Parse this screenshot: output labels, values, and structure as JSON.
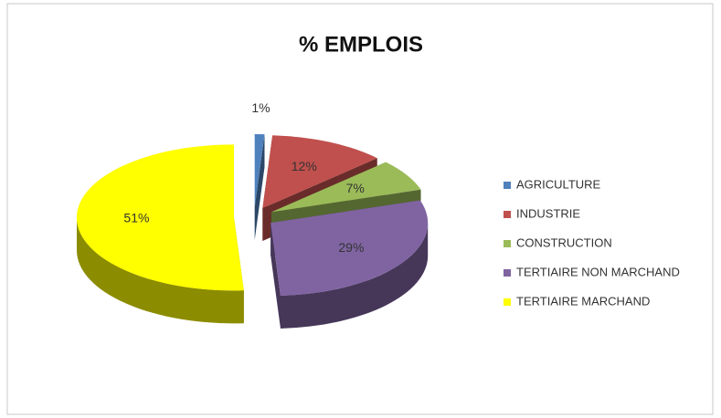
{
  "chart_data": {
    "type": "pie3d",
    "title": "% EMPLOIS",
    "categories": [
      "AGRICULTURE",
      "INDUSTRIE",
      "CONSTRUCTION",
      "TERTIAIRE NON MARCHAND",
      "TERTIAIRE MARCHAND"
    ],
    "values": [
      1,
      12,
      7,
      29,
      51
    ],
    "value_labels": [
      "1%",
      "12%",
      "7%",
      "29%",
      "51%"
    ],
    "colors": [
      "#4f81bd",
      "#c0504d",
      "#9bbb59",
      "#8064a2",
      "#ffff00"
    ],
    "legend": "right"
  }
}
